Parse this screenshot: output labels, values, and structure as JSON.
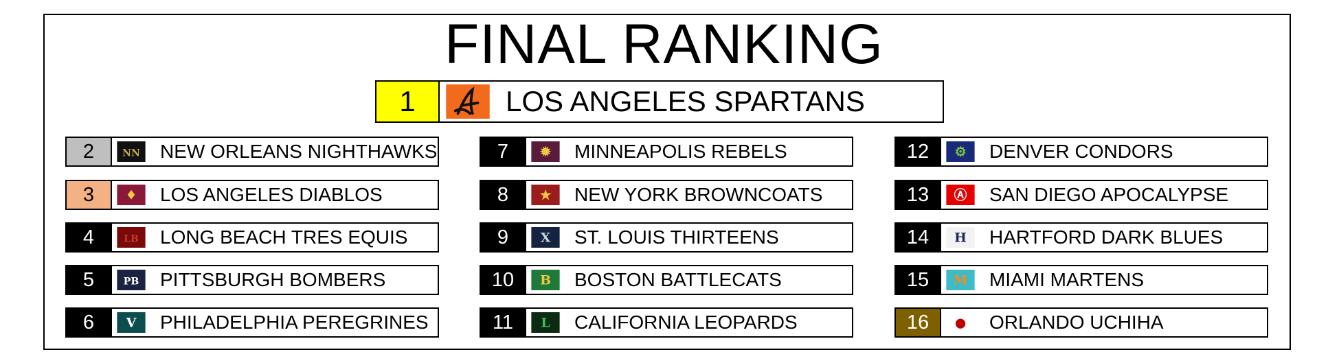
{
  "title": "FINAL RANKING",
  "champion": {
    "rank": "1",
    "team": "LOS ANGELES SPARTANS",
    "rank_bg": "#ffff00",
    "logo_bg": "#f26b1d",
    "logo_icon": "spartans-a-icon"
  },
  "teams": [
    {
      "rank": "2",
      "team": "NEW ORLEANS NIGHTHAWKS",
      "rank_bg": "#bfbfbf",
      "rank_color": "#000000",
      "logo_bg": "#111111",
      "logo_fg": "#c8a94a",
      "logo_text": "NN"
    },
    {
      "rank": "3",
      "team": "LOS ANGELES DIABLOS",
      "rank_bg": "#f4b183",
      "rank_color": "#000000",
      "logo_bg": "#8b1a3a",
      "logo_fg": "#f2c744",
      "logo_text": "♦"
    },
    {
      "rank": "4",
      "team": "LONG BEACH TRES EQUIS",
      "rank_bg": "#000000",
      "rank_color": "#ffffff",
      "logo_bg": "#7a0a0a",
      "logo_fg": "#c0392b",
      "logo_text": "LB"
    },
    {
      "rank": "5",
      "team": "PITTSBURGH BOMBERS",
      "rank_bg": "#000000",
      "rank_color": "#ffffff",
      "logo_bg": "#1b2340",
      "logo_fg": "#ffffff",
      "logo_text": "PB"
    },
    {
      "rank": "6",
      "team": "PHILADELPHIA PEREGRINES",
      "rank_bg": "#000000",
      "rank_color": "#ffffff",
      "logo_bg": "#0d4d4d",
      "logo_fg": "#ffffff",
      "logo_text": "V"
    },
    {
      "rank": "7",
      "team": "MINNEAPOLIS REBELS",
      "rank_bg": "#000000",
      "rank_color": "#ffffff",
      "logo_bg": "#5a1a3a",
      "logo_fg": "#f2c744",
      "logo_text": "✹"
    },
    {
      "rank": "8",
      "team": "NEW YORK BROWNCOATS",
      "rank_bg": "#000000",
      "rank_color": "#ffffff",
      "logo_bg": "#9b1c1c",
      "logo_fg": "#f2c744",
      "logo_text": "★"
    },
    {
      "rank": "9",
      "team": "ST. LOUIS THIRTEENS",
      "rank_bg": "#000000",
      "rank_color": "#ffffff",
      "logo_bg": "#14233f",
      "logo_fg": "#c9d3de",
      "logo_text": "X"
    },
    {
      "rank": "10",
      "team": "BOSTON BATTLECATS",
      "rank_bg": "#000000",
      "rank_color": "#ffffff",
      "logo_bg": "#1f7a3a",
      "logo_fg": "#f2c744",
      "logo_text": "B"
    },
    {
      "rank": "11",
      "team": "CALIFORNIA LEOPARDS",
      "rank_bg": "#000000",
      "rank_color": "#ffffff",
      "logo_bg": "#0b2b12",
      "logo_fg": "#3fbf5a",
      "logo_text": "L"
    },
    {
      "rank": "12",
      "team": "DENVER CONDORS",
      "rank_bg": "#000000",
      "rank_color": "#ffffff",
      "logo_bg": "#1a2a7a",
      "logo_fg": "#7ac142",
      "logo_text": "⚙"
    },
    {
      "rank": "13",
      "team": "SAN DIEGO APOCALYPSE",
      "rank_bg": "#000000",
      "rank_color": "#ffffff",
      "logo_bg": "#e60000",
      "logo_fg": "#ffffff",
      "logo_text": "Ⓐ"
    },
    {
      "rank": "14",
      "team": "HARTFORD DARK BLUES",
      "rank_bg": "#000000",
      "rank_color": "#ffffff",
      "logo_bg": "#f2f2f2",
      "logo_fg": "#1a2a5a",
      "logo_text": "H"
    },
    {
      "rank": "15",
      "team": "MIAMI MARTENS",
      "rank_bg": "#000000",
      "rank_color": "#ffffff",
      "logo_bg": "#3cbcc8",
      "logo_fg": "#f28c28",
      "logo_text": "M"
    },
    {
      "rank": "16",
      "team": "ORLANDO UCHIHA",
      "rank_bg": "#7f6000",
      "rank_color": "#ffffff",
      "logo_bg": "#ffffff",
      "logo_fg": "#c00000",
      "logo_text": "●"
    }
  ]
}
